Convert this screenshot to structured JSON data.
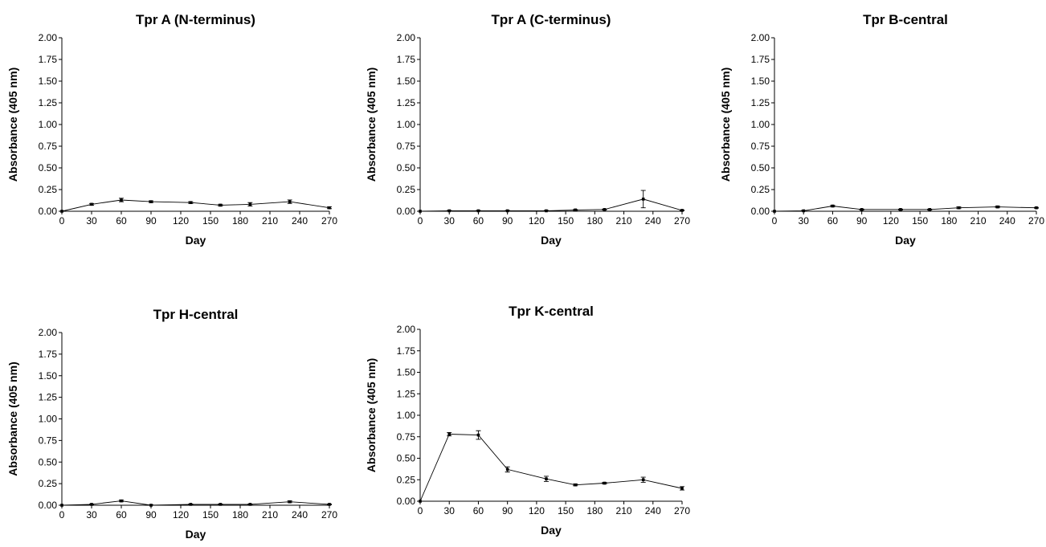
{
  "chart_data": [
    {
      "type": "line",
      "title": "Tpr A (N-terminus)",
      "xlabel": "Day",
      "ylabel": "Absorbance (405 nm)",
      "xlim": [
        0,
        270
      ],
      "ylim": [
        0,
        2
      ],
      "x_ticks": [
        "0",
        "30",
        "60",
        "90",
        "120",
        "150",
        "180",
        "210",
        "240",
        "270"
      ],
      "y_ticks": [
        "0.00",
        "0.25",
        "0.50",
        "0.75",
        "1.00",
        "1.25",
        "1.50",
        "1.75",
        "2.00"
      ],
      "grid": false,
      "series": [
        {
          "x": [
            0,
            30,
            60,
            90,
            130,
            160,
            190,
            230,
            270
          ],
          "y": [
            0.0,
            0.08,
            0.13,
            0.11,
            0.1,
            0.07,
            0.08,
            0.11,
            0.04
          ],
          "error": [
            0,
            0.01,
            0.02,
            0.01,
            0.01,
            0.01,
            0.02,
            0.02,
            0.01
          ]
        }
      ]
    },
    {
      "type": "line",
      "title": "Tpr A (C-terminus)",
      "xlabel": "Day",
      "ylabel": "Absorbance (405 nm)",
      "xlim": [
        0,
        270
      ],
      "ylim": [
        0,
        2
      ],
      "x_ticks": [
        "0",
        "30",
        "60",
        "90",
        "120",
        "150",
        "180",
        "210",
        "240",
        "270"
      ],
      "y_ticks": [
        "0.00",
        "0.25",
        "0.50",
        "0.75",
        "1.00",
        "1.25",
        "1.50",
        "1.75",
        "2.00"
      ],
      "grid": false,
      "series": [
        {
          "x": [
            0,
            30,
            60,
            90,
            130,
            160,
            190,
            230,
            270
          ],
          "y": [
            0.0,
            0.005,
            0.005,
            0.005,
            0.005,
            0.015,
            0.02,
            0.14,
            0.01
          ],
          "error": [
            0,
            0.005,
            0.005,
            0.005,
            0.005,
            0.005,
            0.005,
            0.1,
            0.005
          ]
        }
      ]
    },
    {
      "type": "line",
      "title": "Tpr B-central",
      "xlabel": "Day",
      "ylabel": "Absorbance (405 nm)",
      "xlim": [
        0,
        270
      ],
      "ylim": [
        0,
        2
      ],
      "x_ticks": [
        "0",
        "30",
        "60",
        "90",
        "120",
        "150",
        "180",
        "210",
        "240",
        "270"
      ],
      "y_ticks": [
        "0.00",
        "0.25",
        "0.50",
        "0.75",
        "1.00",
        "1.25",
        "1.50",
        "1.75",
        "2.00"
      ],
      "grid": false,
      "series": [
        {
          "x": [
            0,
            30,
            60,
            90,
            130,
            160,
            190,
            230,
            270
          ],
          "y": [
            0.0,
            0.005,
            0.06,
            0.02,
            0.02,
            0.02,
            0.04,
            0.05,
            0.04
          ],
          "error": [
            0,
            0.005,
            0.01,
            0.005,
            0.005,
            0.005,
            0.01,
            0.01,
            0.005
          ]
        }
      ]
    },
    {
      "type": "line",
      "title": "Tpr H-central",
      "xlabel": "Day",
      "ylabel": "Absorbance (405 nm)",
      "xlim": [
        0,
        270
      ],
      "ylim": [
        0,
        2
      ],
      "x_ticks": [
        "0",
        "30",
        "60",
        "90",
        "120",
        "150",
        "180",
        "210",
        "240",
        "270"
      ],
      "y_ticks": [
        "0.00",
        "0.25",
        "0.50",
        "0.75",
        "1.00",
        "1.25",
        "1.50",
        "1.75",
        "2.00"
      ],
      "grid": false,
      "series": [
        {
          "x": [
            0,
            30,
            60,
            90,
            130,
            160,
            190,
            230,
            270
          ],
          "y": [
            0.0,
            0.01,
            0.05,
            0.0,
            0.01,
            0.01,
            0.01,
            0.04,
            0.01
          ],
          "error": [
            0,
            0.005,
            0.01,
            0.005,
            0.005,
            0.005,
            0.005,
            0.01,
            0.005
          ]
        }
      ]
    },
    {
      "type": "line",
      "title": "Tpr K-central",
      "xlabel": "Day",
      "ylabel": "Absorbance (405 nm)",
      "xlim": [
        0,
        270
      ],
      "ylim": [
        0,
        2
      ],
      "x_ticks": [
        "0",
        "30",
        "60",
        "90",
        "120",
        "150",
        "180",
        "210",
        "240",
        "270"
      ],
      "y_ticks": [
        "0.00",
        "0.25",
        "0.50",
        "0.75",
        "1.00",
        "1.25",
        "1.50",
        "1.75",
        "2.00"
      ],
      "grid": false,
      "series": [
        {
          "x": [
            0,
            30,
            60,
            90,
            130,
            160,
            190,
            230,
            270
          ],
          "y": [
            0.0,
            0.78,
            0.77,
            0.37,
            0.26,
            0.19,
            0.21,
            0.25,
            0.15
          ],
          "error": [
            0,
            0.02,
            0.05,
            0.03,
            0.03,
            0.01,
            0.01,
            0.03,
            0.02
          ]
        }
      ]
    }
  ]
}
